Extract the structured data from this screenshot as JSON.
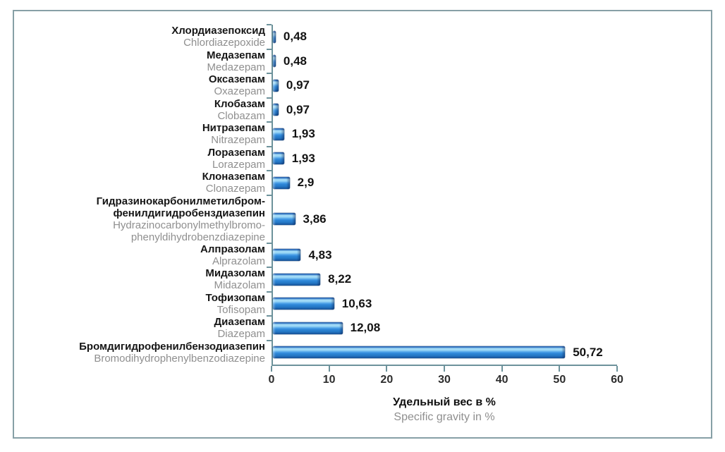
{
  "chart_data": {
    "type": "bar",
    "orientation": "horizontal",
    "title": "",
    "xlabel_ru": "Удельный вес в %",
    "xlabel_en": "Specific gravity in %",
    "xlim": [
      0,
      60
    ],
    "xticks": [
      0,
      10,
      20,
      30,
      40,
      50,
      60
    ],
    "grid": false,
    "legend": "none",
    "bar_color": "#2e87d8",
    "axis_color": "#6d929b",
    "frame_color": "#87a0a6",
    "categories": [
      {
        "ru": "Хлордиазепоксид",
        "en": "Chlordiazepoxide",
        "value": 0.48,
        "label": "0,48"
      },
      {
        "ru": "Медазепам",
        "en": "Medazepam",
        "value": 0.48,
        "label": "0,48"
      },
      {
        "ru": "Оксазепам",
        "en": "Oxazepam",
        "value": 0.97,
        "label": "0,97"
      },
      {
        "ru": "Клобазам",
        "en": "Clobazam",
        "value": 0.97,
        "label": "0,97"
      },
      {
        "ru": "Нитразепам",
        "en": "Nitrazepam",
        "value": 1.93,
        "label": "1,93"
      },
      {
        "ru": "Лоразепам",
        "en": "Lorazepam",
        "value": 1.93,
        "label": "1,93"
      },
      {
        "ru": "Клоназепам",
        "en": "Clonazepam",
        "value": 2.9,
        "label": "2,9"
      },
      {
        "ru": "Гидразинокарбонилметилбром-\nфенилдигидробензди­азепин",
        "en": "Hydrazinocarbonylmethylbromo-\nphenyldihydrobenzdiazepine",
        "value": 3.86,
        "label": "3,86"
      },
      {
        "ru": "Алпразолам",
        "en": "Alprazolam",
        "value": 4.83,
        "label": "4,83"
      },
      {
        "ru": "Мидазолам",
        "en": "Midazolam",
        "value": 8.22,
        "label": "8,22"
      },
      {
        "ru": "Тофизопам",
        "en": "Tofisopam",
        "value": 10.63,
        "label": "10,63"
      },
      {
        "ru": "Диазепам",
        "en": "Diazepam",
        "value": 12.08,
        "label": "12,08"
      },
      {
        "ru": "Бромдигидрофенилбензодиазепин",
        "en": "Bromodihydrophenylbenzodiazepine",
        "value": 50.72,
        "label": "50,72"
      }
    ]
  }
}
